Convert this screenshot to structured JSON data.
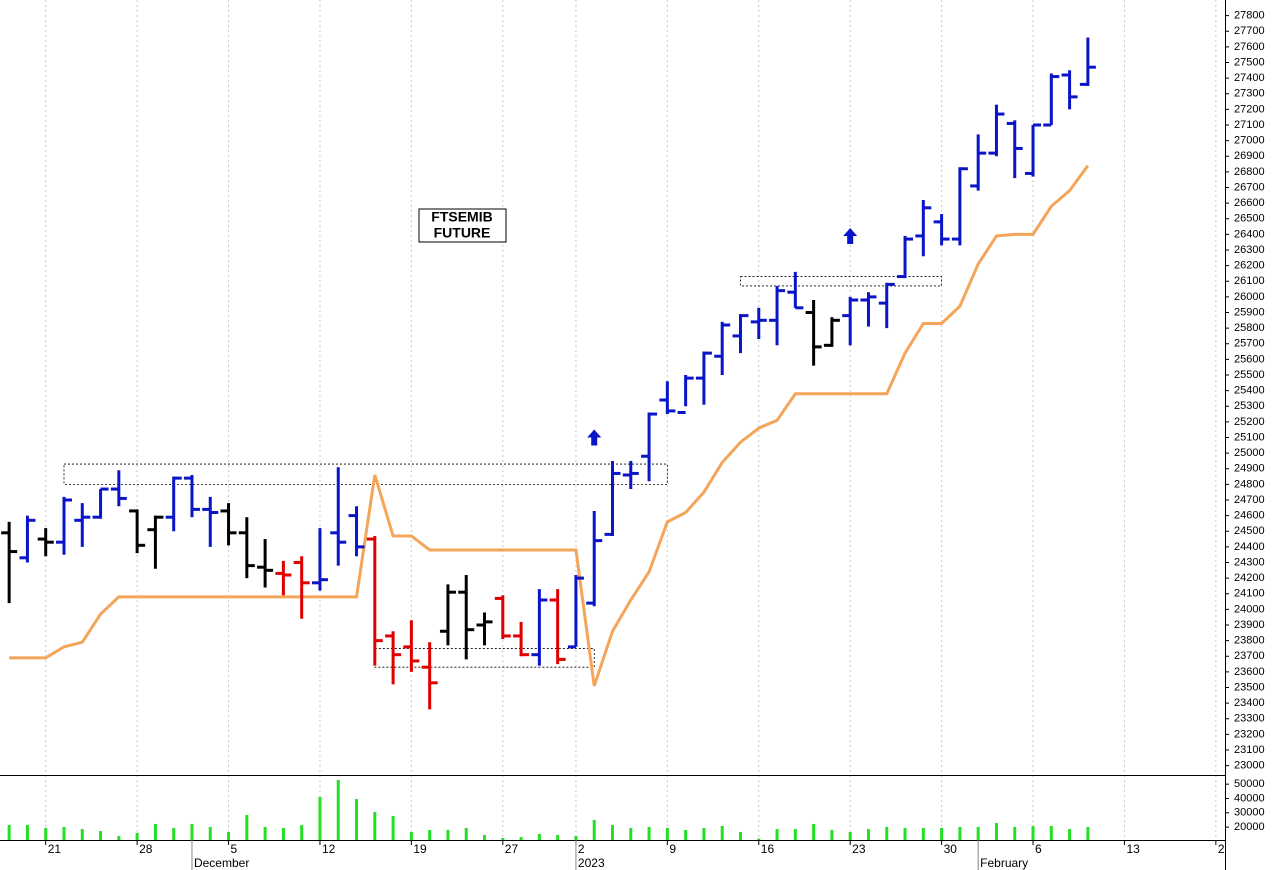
{
  "chart_data": [
    {
      "type": "ohlc",
      "title": "FTSEMIB",
      "subtitle": "FUTURE",
      "xlim": [
        -0.5,
        66.5
      ],
      "ylim": [
        22940,
        27900
      ],
      "yticks": [
        23000,
        23100,
        23200,
        23300,
        23400,
        23500,
        23600,
        23700,
        23800,
        23900,
        24000,
        24100,
        24200,
        24300,
        24400,
        24500,
        24600,
        24700,
        24800,
        24900,
        25000,
        25100,
        25200,
        25300,
        25400,
        25500,
        25600,
        25700,
        25800,
        25900,
        26000,
        26100,
        26200,
        26300,
        26400,
        26500,
        26600,
        26700,
        26800,
        26900,
        27000,
        27100,
        27200,
        27300,
        27400,
        27500,
        27600,
        27700,
        27800
      ],
      "open": [
        24490,
        24330,
        24450,
        24430,
        24570,
        24590,
        24770,
        24630,
        24510,
        24590,
        24840,
        24640,
        24630,
        24490,
        24270,
        24230,
        24300,
        24170,
        24490,
        24600,
        24450,
        23830,
        23760,
        23630,
        23860,
        24110,
        23900,
        24070,
        23830,
        23710,
        24060,
        23760,
        24040,
        24480,
        24860,
        24980,
        25340,
        25260,
        25480,
        25620,
        25750,
        25840,
        25850,
        26030,
        25900,
        25690,
        25880,
        25980,
        25960,
        26130,
        26390,
        26480,
        26370,
        26710,
        26920,
        27110,
        26790,
        27100,
        27420,
        27360
      ],
      "high": [
        24560,
        24600,
        24520,
        24720,
        24680,
        24770,
        24890,
        24640,
        24600,
        24850,
        24860,
        24720,
        24680,
        24590,
        24450,
        24310,
        24340,
        24520,
        24910,
        24660,
        24470,
        23860,
        23930,
        23790,
        24160,
        24220,
        23980,
        24090,
        23920,
        24130,
        24130,
        24220,
        24630,
        24950,
        24950,
        25260,
        25460,
        25500,
        25650,
        25840,
        25890,
        25930,
        26070,
        26160,
        25980,
        25870,
        26000,
        26030,
        26090,
        26390,
        26620,
        26530,
        26830,
        27040,
        27230,
        27130,
        27100,
        27430,
        27450,
        27660
      ],
      "low": [
        24040,
        24300,
        24340,
        24350,
        24400,
        24580,
        24660,
        24360,
        24260,
        24500,
        24590,
        24400,
        24410,
        24200,
        24140,
        24090,
        23940,
        24120,
        24280,
        24340,
        23640,
        23520,
        23600,
        23360,
        23770,
        23680,
        23770,
        23810,
        23700,
        23640,
        23650,
        23760,
        24020,
        24470,
        24770,
        24820,
        25250,
        25300,
        25310,
        25500,
        25640,
        25730,
        25690,
        25930,
        25560,
        25680,
        25690,
        25810,
        25800,
        26120,
        26260,
        26330,
        26330,
        26680,
        26900,
        26760,
        26770,
        27100,
        27200,
        27350
      ],
      "close": [
        24370,
        24570,
        24430,
        24700,
        24590,
        24770,
        24710,
        24410,
        24590,
        24840,
        24640,
        24620,
        24490,
        24280,
        24250,
        24220,
        24170,
        24190,
        24430,
        24400,
        23800,
        23710,
        23670,
        23530,
        24110,
        23870,
        23920,
        23830,
        23710,
        24060,
        23680,
        24200,
        24440,
        24870,
        24870,
        25250,
        25270,
        25480,
        25640,
        25820,
        25880,
        25850,
        26040,
        25930,
        25680,
        25850,
        25980,
        26000,
        26080,
        26370,
        26570,
        26370,
        26820,
        26920,
        27170,
        26950,
        27100,
        27410,
        27280,
        27470
      ],
      "bar_colors": [
        "#000000",
        "#0a14c8",
        "#000000",
        "#0a14c8",
        "#0a14c8",
        "#0a14c8",
        "#0a14c8",
        "#000000",
        "#000000",
        "#0a14c8",
        "#0a14c8",
        "#0a14c8",
        "#000000",
        "#000000",
        "#000000",
        "#e00000",
        "#e00000",
        "#0a14c8",
        "#0a14c8",
        "#0a14c8",
        "#e00000",
        "#e00000",
        "#e00000",
        "#e00000",
        "#000000",
        "#000000",
        "#000000",
        "#e00000",
        "#e00000",
        "#0a14c8",
        "#e00000",
        "#0a14c8",
        "#0a14c8",
        "#0a14c8",
        "#0a14c8",
        "#0a14c8",
        "#0a14c8",
        "#0a14c8",
        "#0a14c8",
        "#0a14c8",
        "#0a14c8",
        "#0a14c8",
        "#0a14c8",
        "#0a14c8",
        "#000000",
        "#000000",
        "#0a14c8",
        "#0a14c8",
        "#0a14c8",
        "#0a14c8",
        "#0a14c8",
        "#0a14c8",
        "#0a14c8",
        "#0a14c8",
        "#0a14c8",
        "#0a14c8",
        "#0a14c8",
        "#0a14c8",
        "#0a14c8",
        "#0a14c8"
      ],
      "line": {
        "color": "#f5a55a",
        "values": [
          23690,
          23690,
          23690,
          23760,
          23790,
          23970,
          24080,
          24080,
          24080,
          24080,
          24080,
          24080,
          24080,
          24080,
          24080,
          24080,
          24080,
          24080,
          24080,
          24080,
          24860,
          24470,
          24470,
          24380,
          24380,
          24380,
          24380,
          24380,
          24380,
          24380,
          24380,
          24380,
          23510,
          23860,
          24060,
          24240,
          24560,
          24620,
          24750,
          24940,
          25070,
          25160,
          25210,
          25380,
          25380,
          25380,
          25380,
          25380,
          25380,
          25640,
          25830,
          25830,
          25940,
          26210,
          26390,
          26400,
          26400,
          26580,
          26680,
          26840
        ]
      },
      "zones": [
        {
          "from": 3,
          "to": 36,
          "top": 24930,
          "bottom": 24800
        },
        {
          "from": 20,
          "to": 32,
          "top": 23750,
          "bottom": 23630
        },
        {
          "from": 40,
          "to": 51,
          "top": 26130,
          "bottom": 26070
        }
      ],
      "signals": [
        {
          "x": 32,
          "y": 25100
        },
        {
          "x": 46,
          "y": 26390
        }
      ],
      "signal_color": "#0a14c8"
    },
    {
      "type": "bar",
      "color": "#22e022",
      "xlim": [
        -0.5,
        66.5
      ],
      "ylim": [
        11000,
        55000
      ],
      "yticks": [
        20000,
        30000,
        40000,
        50000
      ],
      "values": [
        21500,
        21500,
        19400,
        20100,
        18700,
        17300,
        13800,
        15900,
        22200,
        19400,
        22200,
        20100,
        16600,
        28500,
        20100,
        19400,
        21500,
        41000,
        52900,
        39600,
        30600,
        27800,
        16600,
        18000,
        18000,
        19400,
        14500,
        12400,
        13100,
        15200,
        14500,
        13800,
        25000,
        21500,
        19400,
        20100,
        19400,
        18000,
        19400,
        20800,
        16600,
        12000,
        18700,
        18700,
        22200,
        18000,
        16600,
        18700,
        20100,
        19400,
        19400,
        19400,
        20100,
        20100,
        22900,
        20100,
        20800,
        20800,
        18700,
        20100
      ],
      "xticks": [
        {
          "value": 2,
          "label": "21"
        },
        {
          "value": 7,
          "label": "28"
        },
        {
          "value": 12,
          "label": "5"
        },
        {
          "value": 17,
          "label": "12"
        },
        {
          "value": 22,
          "label": "19"
        },
        {
          "value": 27,
          "label": "27"
        },
        {
          "value": 31,
          "label": "2"
        },
        {
          "value": 36,
          "label": "9"
        },
        {
          "value": 41,
          "label": "16"
        },
        {
          "value": 46,
          "label": "23"
        },
        {
          "value": 51,
          "label": "30"
        },
        {
          "value": 56,
          "label": "6"
        },
        {
          "value": 61,
          "label": "13"
        },
        {
          "value": 66,
          "label": "2"
        }
      ],
      "month_ticks": [
        {
          "value": 10,
          "label": "December"
        },
        {
          "value": 31,
          "label": "2023"
        },
        {
          "value": 53,
          "label": "February"
        }
      ]
    }
  ]
}
